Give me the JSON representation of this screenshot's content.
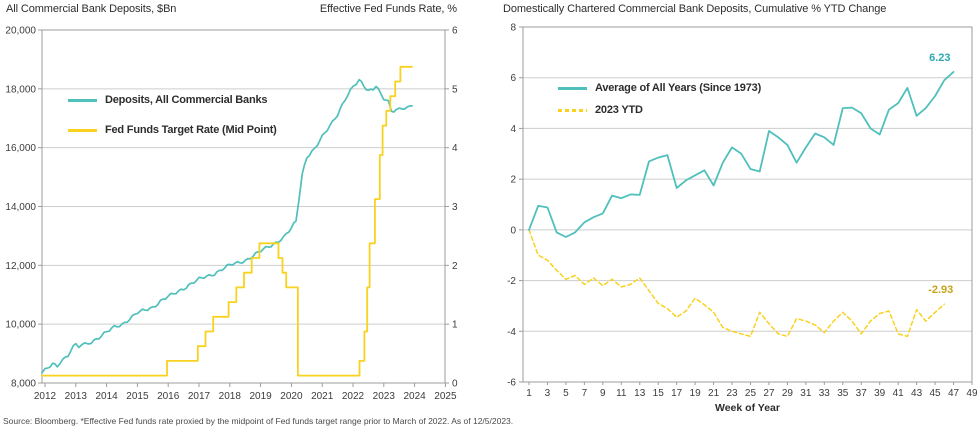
{
  "footer": "Source: Bloomberg. *Effective Fed funds rate proxied by the midpoint of Fed funds target range prior to March of 2022. As of 12/5/2023.",
  "colors": {
    "teal": "#4FC0BB",
    "yellow": "#F8D21F",
    "teal_label": "#2EA9B0",
    "gold_label": "#C7A21C",
    "grid": "#CDCDCD",
    "axis": "#9C9C9C",
    "text": "#3C3C3C"
  },
  "chart_data": [
    {
      "id": "all-commercial-bank-deposits",
      "type": "line",
      "title": "All Commercial Bank Deposits, $Bn",
      "right_axis_title": "Effective Fed Funds Rate, %",
      "x_ticks": [
        2012,
        2013,
        2014,
        2015,
        2016,
        2017,
        2018,
        2019,
        2020,
        2021,
        2022,
        2023,
        2024,
        2025
      ],
      "left_axis": {
        "range": [
          8000,
          20000
        ],
        "tick_values": [
          8000,
          10000,
          12000,
          14000,
          16000,
          18000,
          20000
        ],
        "tick_labels": [
          "8,000",
          "10,000",
          "12,000",
          "14,000",
          "16,000",
          "18,000",
          "20,000"
        ]
      },
      "right_axis": {
        "range": [
          0,
          6
        ],
        "tick_values": [
          0,
          1,
          2,
          3,
          4,
          5,
          6
        ]
      },
      "grid": "horizontal",
      "series": [
        {
          "name": "Deposits, All Commercial Banks",
          "axis": "left",
          "color": "#4FC0BB",
          "style": "solid",
          "points": [
            [
              2011.9,
              8340
            ],
            [
              2012,
              8420
            ],
            [
              2012.25,
              8650
            ],
            [
              2012.4,
              8600
            ],
            [
              2012.5,
              8730
            ],
            [
              2012.75,
              8950
            ],
            [
              2013,
              9320
            ],
            [
              2013.1,
              9230
            ],
            [
              2013.3,
              9330
            ],
            [
              2013.5,
              9400
            ],
            [
              2013.75,
              9550
            ],
            [
              2014,
              9720
            ],
            [
              2014.25,
              9900
            ],
            [
              2014.5,
              10000
            ],
            [
              2014.75,
              10180
            ],
            [
              2015,
              10380
            ],
            [
              2015.25,
              10480
            ],
            [
              2015.5,
              10580
            ],
            [
              2015.75,
              10780
            ],
            [
              2016,
              10930
            ],
            [
              2016.25,
              11070
            ],
            [
              2016.5,
              11220
            ],
            [
              2016.75,
              11380
            ],
            [
              2017,
              11520
            ],
            [
              2017.25,
              11620
            ],
            [
              2017.5,
              11720
            ],
            [
              2017.75,
              11870
            ],
            [
              2018,
              12000
            ],
            [
              2018.25,
              12080
            ],
            [
              2018.5,
              12170
            ],
            [
              2018.75,
              12320
            ],
            [
              2019,
              12480
            ],
            [
              2019.25,
              12630
            ],
            [
              2019.5,
              12780
            ],
            [
              2019.75,
              12950
            ],
            [
              2020,
              13250
            ],
            [
              2020.15,
              13500
            ],
            [
              2020.35,
              15100
            ],
            [
              2020.5,
              15700
            ],
            [
              2020.75,
              15950
            ],
            [
              2021,
              16350
            ],
            [
              2021.25,
              16750
            ],
            [
              2021.5,
              17150
            ],
            [
              2021.75,
              17650
            ],
            [
              2022,
              18050
            ],
            [
              2022.2,
              18300
            ],
            [
              2022.35,
              18120
            ],
            [
              2022.5,
              17950
            ],
            [
              2022.65,
              18000
            ],
            [
              2022.75,
              18100
            ],
            [
              2022.9,
              17800
            ],
            [
              2023,
              17650
            ],
            [
              2023.15,
              17550
            ],
            [
              2023.25,
              17250
            ],
            [
              2023.4,
              17300
            ],
            [
              2023.6,
              17360
            ],
            [
              2023.75,
              17330
            ],
            [
              2023.92,
              17420
            ]
          ]
        },
        {
          "name": "Fed Funds Target Rate (Mid Point)",
          "axis": "right",
          "color": "#F8D21F",
          "style": "step",
          "end_x": 2023.92,
          "points": [
            [
              2011.9,
              0.125
            ],
            [
              2015.96,
              0.375
            ],
            [
              2016.96,
              0.625
            ],
            [
              2017.21,
              0.875
            ],
            [
              2017.46,
              1.125
            ],
            [
              2017.96,
              1.375
            ],
            [
              2018.21,
              1.625
            ],
            [
              2018.46,
              1.875
            ],
            [
              2018.71,
              2.125
            ],
            [
              2018.96,
              2.375
            ],
            [
              2019.58,
              2.125
            ],
            [
              2019.71,
              1.875
            ],
            [
              2019.83,
              1.625
            ],
            [
              2020.21,
              0.125
            ],
            [
              2022.21,
              0.375
            ],
            [
              2022.37,
              0.875
            ],
            [
              2022.46,
              1.625
            ],
            [
              2022.54,
              2.375
            ],
            [
              2022.71,
              3.125
            ],
            [
              2022.87,
              3.875
            ],
            [
              2022.96,
              4.375
            ],
            [
              2023.08,
              4.625
            ],
            [
              2023.21,
              4.875
            ],
            [
              2023.37,
              5.125
            ],
            [
              2023.54,
              5.375
            ]
          ]
        }
      ]
    },
    {
      "id": "ytd-cumulative-change",
      "type": "line",
      "title": "Domestically Chartered Commercial Bank Deposits, Cumulative % YTD Change",
      "xlabel": "Week of Year",
      "x_ticks": [
        1,
        3,
        5,
        7,
        9,
        11,
        13,
        15,
        17,
        19,
        21,
        23,
        25,
        27,
        29,
        31,
        33,
        35,
        37,
        39,
        41,
        43,
        45,
        47,
        49
      ],
      "y_axis": {
        "range": [
          -6,
          8
        ],
        "tick_values": [
          8,
          6,
          4,
          2,
          0,
          -2,
          -4,
          -6
        ]
      },
      "grid": "horizontal",
      "series": [
        {
          "name": "Average of All Years (Since 1973)",
          "color": "#4FC0BB",
          "style": "solid",
          "start_week": 1,
          "values": [
            0,
            0.95,
            0.88,
            -0.1,
            -0.28,
            -0.1,
            0.3,
            0.5,
            0.65,
            1.35,
            1.25,
            1.4,
            1.38,
            2.7,
            2.85,
            2.95,
            1.65,
            1.95,
            2.15,
            2.35,
            1.75,
            2.65,
            3.25,
            3.0,
            2.4,
            2.3,
            3.9,
            3.65,
            3.35,
            2.65,
            3.25,
            3.8,
            3.65,
            3.35,
            4.8,
            4.82,
            4.6,
            4.0,
            3.76,
            4.74,
            5.0,
            5.6,
            4.5,
            4.8,
            5.28,
            5.9,
            6.23
          ]
        },
        {
          "name": "2023 YTD",
          "color": "#F8D21F",
          "style": "dashed",
          "start_week": 1,
          "values": [
            0,
            -1.0,
            -1.2,
            -1.6,
            -1.95,
            -1.8,
            -2.15,
            -1.9,
            -2.2,
            -1.95,
            -2.25,
            -2.15,
            -1.9,
            -2.4,
            -2.9,
            -3.1,
            -3.45,
            -3.2,
            -2.7,
            -2.95,
            -3.25,
            -3.85,
            -4.0,
            -4.1,
            -4.2,
            -3.25,
            -3.7,
            -4.1,
            -4.2,
            -3.5,
            -3.6,
            -3.75,
            -4.05,
            -3.6,
            -3.25,
            -3.6,
            -4.1,
            -3.6,
            -3.3,
            -3.2,
            -4.1,
            -4.2,
            -3.15,
            -3.6,
            -3.25,
            -2.93
          ]
        }
      ],
      "annotations": [
        {
          "text": "6.23",
          "color": "#2EA9B0"
        },
        {
          "text": "-2.93",
          "color": "#C7A21C"
        }
      ]
    }
  ]
}
